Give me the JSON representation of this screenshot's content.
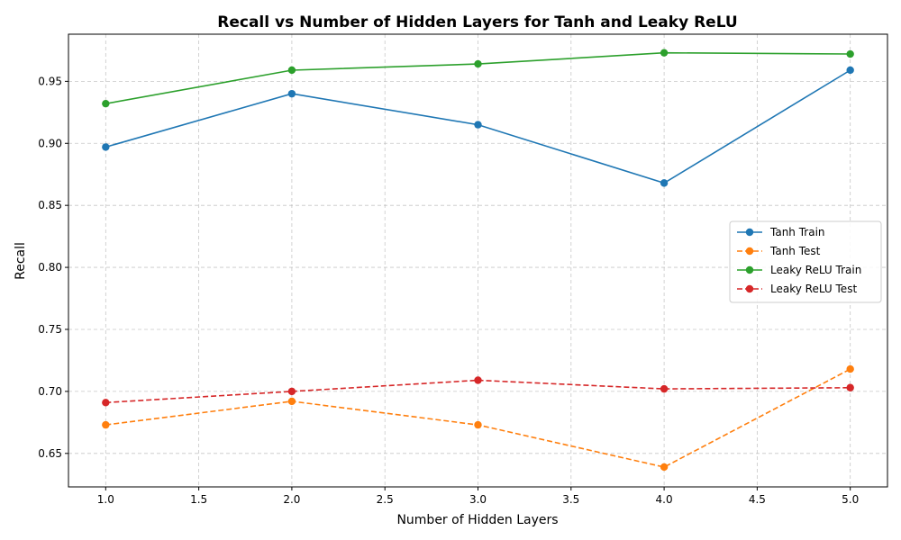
{
  "chart_data": {
    "type": "line",
    "title": "Recall vs Number of Hidden Layers for Tanh and Leaky ReLU",
    "xlabel": "Number of Hidden Layers",
    "ylabel": "Recall",
    "xlim": [
      0.8,
      5.2
    ],
    "ylim": [
      0.623,
      0.988
    ],
    "x_ticks": [
      1.0,
      1.5,
      2.0,
      2.5,
      3.0,
      3.5,
      4.0,
      4.5,
      5.0
    ],
    "x_tick_labels": [
      "1.0",
      "1.5",
      "2.0",
      "2.5",
      "3.0",
      "3.5",
      "4.0",
      "4.5",
      "5.0"
    ],
    "y_ticks": [
      0.65,
      0.7,
      0.75,
      0.8,
      0.85,
      0.9,
      0.95
    ],
    "y_tick_labels": [
      "0.65",
      "0.70",
      "0.75",
      "0.80",
      "0.85",
      "0.90",
      "0.95"
    ],
    "grid": true,
    "legend_position": "center-right",
    "x": [
      1,
      2,
      3,
      4,
      5
    ],
    "series": [
      {
        "name": "Tanh Train",
        "values": [
          0.897,
          0.94,
          0.915,
          0.868,
          0.959
        ],
        "color": "#1f77b4",
        "dashed": false
      },
      {
        "name": "Tanh Test",
        "values": [
          0.673,
          0.692,
          0.673,
          0.639,
          0.718
        ],
        "color": "#ff7f0e",
        "dashed": true
      },
      {
        "name": "Leaky ReLU Train",
        "values": [
          0.932,
          0.959,
          0.964,
          0.973,
          0.972
        ],
        "color": "#2ca02c",
        "dashed": false
      },
      {
        "name": "Leaky ReLU Test",
        "values": [
          0.691,
          0.7,
          0.709,
          0.702,
          0.703
        ],
        "color": "#d62728",
        "dashed": true
      }
    ]
  }
}
